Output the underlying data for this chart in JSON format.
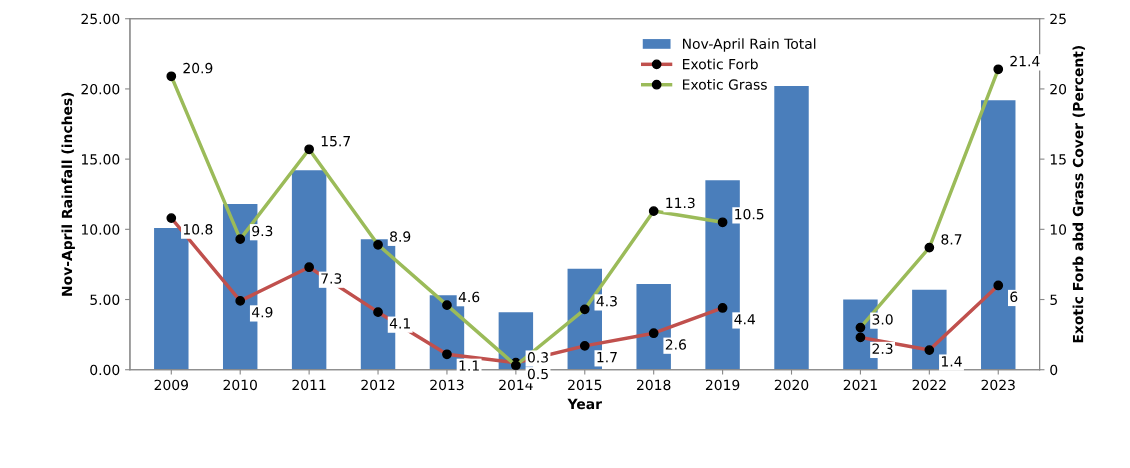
{
  "chart_data": {
    "type": "bar",
    "xlabel": "Year",
    "ylabel": "Nov-April Rainfall (inches)",
    "y2label": "Exotic Forb abd Grass Cover (Percent)",
    "categories": [
      "2009",
      "2010",
      "2011",
      "2012",
      "2013",
      "2014",
      "2015",
      "2018",
      "2019",
      "2020",
      "2021",
      "2022",
      "2023"
    ],
    "series": [
      {
        "name": "Nov-April Rain Total",
        "color": "#4a7ebb",
        "values": [
          10.1,
          11.8,
          14.2,
          9.3,
          5.3,
          4.1,
          7.2,
          6.1,
          13.5,
          20.2,
          5.0,
          5.7,
          19.2
        ]
      },
      {
        "name": "Exotic Forb",
        "type": "line",
        "axis": "y2",
        "color": "#c0504d",
        "marker": "circle",
        "values": [
          10.8,
          4.9,
          7.3,
          4.1,
          1.1,
          0.5,
          1.7,
          2.6,
          4.4,
          null,
          2.3,
          1.4,
          6
        ],
        "value_labels": [
          "10.8",
          "4.9",
          "7.3",
          "4.1",
          "1.1",
          "0.5",
          "1.7",
          "2.6",
          "4.4",
          null,
          "2.3",
          "1.4",
          "6"
        ]
      },
      {
        "name": "Exotic Grass",
        "type": "line",
        "axis": "y2",
        "color": "#9bbb59",
        "marker": "circle",
        "values": [
          20.9,
          9.3,
          15.7,
          8.9,
          4.6,
          0.3,
          4.3,
          11.3,
          10.5,
          null,
          3.0,
          8.7,
          21.4
        ],
        "value_labels": [
          "20.9",
          "9.3",
          "15.7",
          "8.9",
          "4.6",
          "0.3",
          "4.3",
          "11.3",
          "10.5",
          null,
          "3.0",
          "8.7",
          "21.4"
        ]
      }
    ],
    "ylim": [
      0,
      25
    ],
    "yticks": [
      {
        "value": 0,
        "label": "0.00"
      },
      {
        "value": 5,
        "label": "5.00"
      },
      {
        "value": 10,
        "label": "10.00"
      },
      {
        "value": 15,
        "label": "15.00"
      },
      {
        "value": 20,
        "label": "20.00"
      },
      {
        "value": 25,
        "label": "25.00"
      }
    ],
    "y2lim": [
      0,
      25
    ],
    "y2ticks": [
      0,
      5,
      10,
      15,
      20,
      25
    ],
    "legend": "top",
    "grid": false
  }
}
